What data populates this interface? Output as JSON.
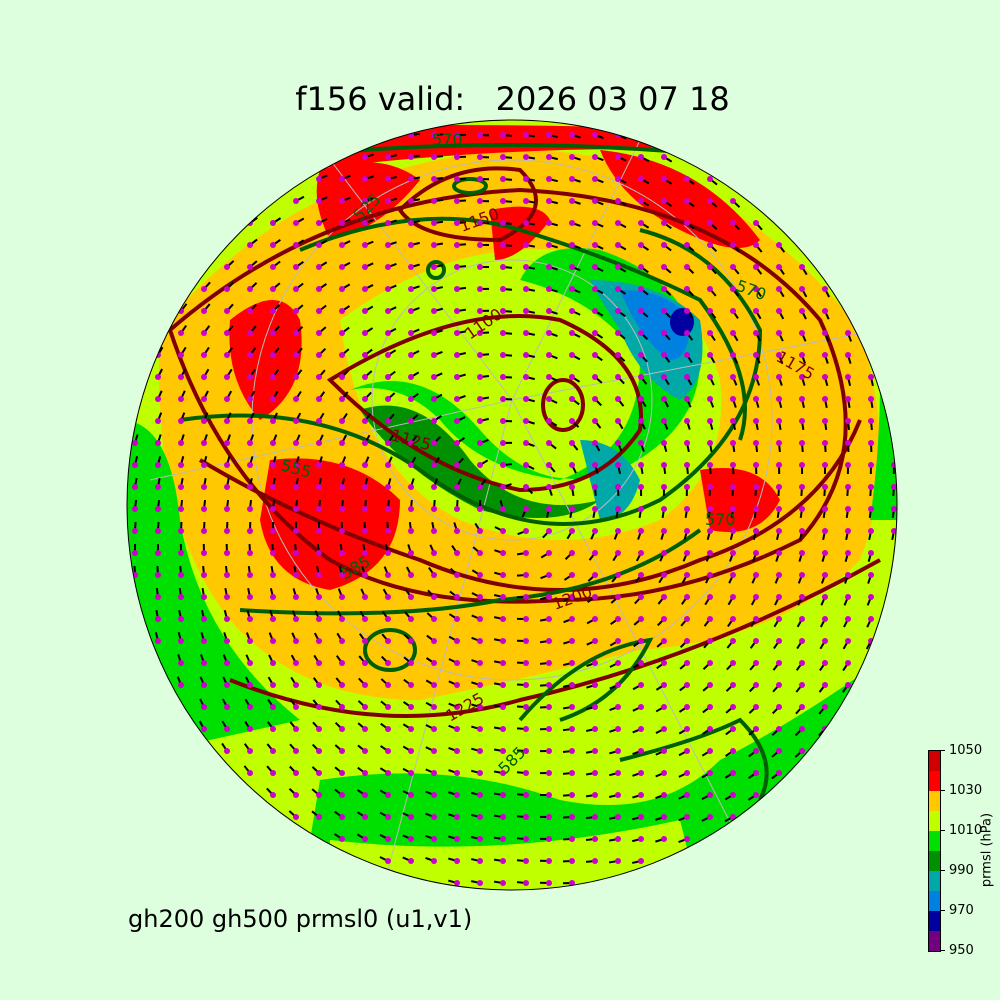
{
  "title": "f156 valid:   2026 03 07 18",
  "subtitle": "gh200 gh500 prmsl0 (u1,v1)",
  "colorbar": {
    "label": "prmsl (hPa)",
    "ticks": [
      "950",
      "970",
      "990",
      "1010",
      "1030",
      "1050"
    ],
    "bounds": [
      950,
      960,
      970,
      980,
      990,
      1000,
      1010,
      1020,
      1030,
      1040,
      1050
    ],
    "colors": [
      "#700080",
      "#0000a0",
      "#0080e0",
      "#00a8a8",
      "#009000",
      "#00e000",
      "#c0ff00",
      "#ffc800",
      "#ff0000",
      "#d00000"
    ]
  },
  "contour_colors": {
    "gh500": "#006000",
    "gh200": "#800000"
  },
  "contour_labels": [
    {
      "text": "570",
      "color": "#006000"
    },
    {
      "text": "1150",
      "color": "#800000"
    },
    {
      "text": "525",
      "color": "#006000"
    },
    {
      "text": "1100",
      "color": "#800000"
    },
    {
      "text": "570",
      "color": "#006000"
    },
    {
      "text": "1175",
      "color": "#800000"
    },
    {
      "text": "1125",
      "color": "#800000"
    },
    {
      "text": "555",
      "color": "#006000"
    },
    {
      "text": "585",
      "color": "#006000"
    },
    {
      "text": "1200",
      "color": "#800000"
    },
    {
      "text": "1225",
      "color": "#800000"
    },
    {
      "text": "585",
      "color": "#006000"
    },
    {
      "text": "570",
      "color": "#006000"
    }
  ]
}
